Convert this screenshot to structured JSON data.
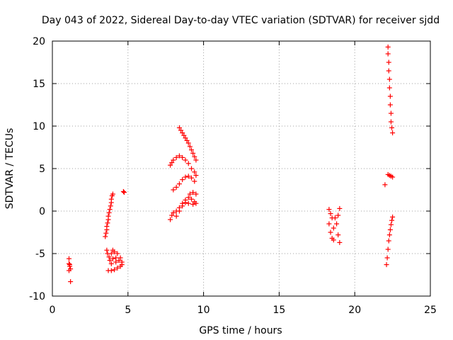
{
  "chart_data": {
    "type": "scatter",
    "title": "Day 043 of 2022, Sidereal Day-to-day VTEC variation (SDTVAR) for receiver sjdd",
    "xlabel": "GPS time / hours",
    "ylabel": "SDTVAR / TECUs",
    "xlim": [
      0,
      25
    ],
    "ylim": [
      -10,
      20
    ],
    "x_ticks": [
      0,
      5,
      10,
      15,
      20,
      25
    ],
    "x_tick_labels": [
      "0",
      "5",
      "10",
      "15",
      "20",
      "25"
    ],
    "y_ticks": [
      -10,
      -5,
      0,
      5,
      10,
      15,
      20
    ],
    "y_tick_labels": [
      "-10",
      "-5",
      "0",
      "5",
      "10",
      "15",
      "20"
    ],
    "grid": true,
    "legend": "none",
    "marker": "plus",
    "color": "#ff0000",
    "series": [
      {
        "name": "sdtvar",
        "points": [
          [
            1.1,
            -5.6
          ],
          [
            1.1,
            -6.2
          ],
          [
            1.15,
            -6.5
          ],
          [
            1.2,
            -6.8
          ],
          [
            1.1,
            -7.0
          ],
          [
            1.15,
            -6.3
          ],
          [
            1.2,
            -8.3
          ],
          [
            3.5,
            -3.0
          ],
          [
            3.55,
            -2.6
          ],
          [
            3.6,
            -2.2
          ],
          [
            3.6,
            -1.8
          ],
          [
            3.65,
            -1.4
          ],
          [
            3.7,
            -1.0
          ],
          [
            3.7,
            -0.6
          ],
          [
            3.75,
            -0.2
          ],
          [
            3.8,
            0.2
          ],
          [
            3.85,
            0.6
          ],
          [
            3.9,
            1.0
          ],
          [
            3.9,
            1.4
          ],
          [
            3.95,
            1.8
          ],
          [
            4.0,
            2.0
          ],
          [
            3.6,
            -4.6
          ],
          [
            3.65,
            -5.0
          ],
          [
            3.75,
            -5.4
          ],
          [
            3.9,
            -5.0
          ],
          [
            4.0,
            -4.6
          ],
          [
            4.1,
            -4.8
          ],
          [
            4.3,
            -5.0
          ],
          [
            4.5,
            -5.5
          ],
          [
            4.6,
            -6.0
          ],
          [
            4.5,
            -6.5
          ],
          [
            4.3,
            -6.7
          ],
          [
            4.1,
            -6.9
          ],
          [
            3.9,
            -7.0
          ],
          [
            3.7,
            -7.0
          ],
          [
            3.8,
            -5.8
          ],
          [
            4.0,
            -5.6
          ],
          [
            4.2,
            -5.5
          ],
          [
            4.4,
            -5.8
          ],
          [
            4.6,
            -6.3
          ],
          [
            4.2,
            -6.0
          ],
          [
            3.9,
            -6.2
          ],
          [
            4.7,
            2.3
          ],
          [
            4.75,
            2.2
          ],
          [
            7.8,
            -1.0
          ],
          [
            7.9,
            -0.5
          ],
          [
            8.0,
            -0.2
          ],
          [
            8.2,
            0.0
          ],
          [
            8.4,
            0.4
          ],
          [
            8.6,
            0.9
          ],
          [
            8.8,
            1.3
          ],
          [
            9.0,
            1.6
          ],
          [
            9.2,
            1.4
          ],
          [
            9.4,
            1.1
          ],
          [
            9.5,
            0.9
          ],
          [
            8.2,
            -0.6
          ],
          [
            8.4,
            0.0
          ],
          [
            8.6,
            0.6
          ],
          [
            8.8,
            1.0
          ],
          [
            9.0,
            0.9
          ],
          [
            9.3,
            0.8
          ],
          [
            8.0,
            2.5
          ],
          [
            8.2,
            2.8
          ],
          [
            8.4,
            3.2
          ],
          [
            8.6,
            3.7
          ],
          [
            8.8,
            4.0
          ],
          [
            9.0,
            4.1
          ],
          [
            9.2,
            3.9
          ],
          [
            9.4,
            3.5
          ],
          [
            9.5,
            2.0
          ],
          [
            9.3,
            2.2
          ],
          [
            9.1,
            2.0
          ],
          [
            7.8,
            5.4
          ],
          [
            7.9,
            5.7
          ],
          [
            8.0,
            6.0
          ],
          [
            8.2,
            6.3
          ],
          [
            8.4,
            6.5
          ],
          [
            8.6,
            6.3
          ],
          [
            8.8,
            6.0
          ],
          [
            9.0,
            5.6
          ],
          [
            9.2,
            5.0
          ],
          [
            9.4,
            4.6
          ],
          [
            9.5,
            4.2
          ],
          [
            8.4,
            9.8
          ],
          [
            8.5,
            9.5
          ],
          [
            8.6,
            9.2
          ],
          [
            8.7,
            8.9
          ],
          [
            8.8,
            8.6
          ],
          [
            8.9,
            8.3
          ],
          [
            9.0,
            8.0
          ],
          [
            9.1,
            7.6
          ],
          [
            9.2,
            7.2
          ],
          [
            9.3,
            6.8
          ],
          [
            9.4,
            6.4
          ],
          [
            9.5,
            6.0
          ],
          [
            18.3,
            0.2
          ],
          [
            18.4,
            -0.3
          ],
          [
            18.3,
            -1.5
          ],
          [
            18.4,
            -2.5
          ],
          [
            18.5,
            -3.2
          ],
          [
            18.6,
            -2.0
          ],
          [
            18.7,
            -0.8
          ],
          [
            18.8,
            -1.5
          ],
          [
            18.9,
            -2.8
          ],
          [
            19.0,
            -3.7
          ],
          [
            19.0,
            0.3
          ],
          [
            18.9,
            -0.5
          ],
          [
            18.5,
            -0.8
          ],
          [
            18.6,
            -3.4
          ],
          [
            22.2,
            19.3
          ],
          [
            22.2,
            18.5
          ],
          [
            22.25,
            17.5
          ],
          [
            22.25,
            16.5
          ],
          [
            22.3,
            15.5
          ],
          [
            22.3,
            14.5
          ],
          [
            22.35,
            13.5
          ],
          [
            22.35,
            12.5
          ],
          [
            22.4,
            11.5
          ],
          [
            22.4,
            10.5
          ],
          [
            22.45,
            9.8
          ],
          [
            22.5,
            9.2
          ],
          [
            22.0,
            3.1
          ],
          [
            22.2,
            4.3
          ],
          [
            22.3,
            4.2
          ],
          [
            22.4,
            4.1
          ],
          [
            22.5,
            4.0
          ],
          [
            22.1,
            -6.3
          ],
          [
            22.15,
            -5.5
          ],
          [
            22.2,
            -4.5
          ],
          [
            22.25,
            -3.5
          ],
          [
            22.3,
            -2.8
          ],
          [
            22.35,
            -2.2
          ],
          [
            22.4,
            -1.6
          ],
          [
            22.45,
            -1.1
          ],
          [
            22.5,
            -0.7
          ]
        ]
      }
    ]
  }
}
